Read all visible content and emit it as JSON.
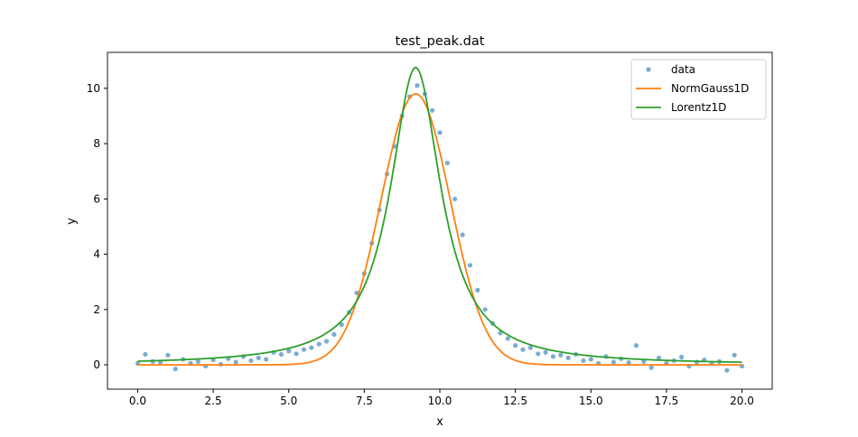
{
  "chart_data": {
    "type": "scatter",
    "title": "test_peak.dat",
    "xlabel": "x",
    "ylabel": "y",
    "xlim": [
      -1.0,
      21.0
    ],
    "ylim": [
      -0.88,
      11.3
    ],
    "xticks": [
      "0.0",
      "2.5",
      "5.0",
      "7.5",
      "10.0",
      "12.5",
      "15.0",
      "17.5",
      "20.0"
    ],
    "xtick_values": [
      0,
      2.5,
      5,
      7.5,
      10,
      12.5,
      15,
      17.5,
      20
    ],
    "yticks": [
      "0",
      "2",
      "4",
      "6",
      "8",
      "10"
    ],
    "ytick_values": [
      0,
      2,
      4,
      6,
      8,
      10
    ],
    "legend_position": "top-right",
    "series": [
      {
        "name": "data",
        "kind": "points",
        "color": "#1f77b4",
        "x": [
          0,
          0.25,
          0.5,
          0.75,
          1,
          1.25,
          1.5,
          1.75,
          2,
          2.25,
          2.5,
          2.75,
          3,
          3.25,
          3.5,
          3.75,
          4,
          4.25,
          4.5,
          4.75,
          5,
          5.25,
          5.5,
          5.75,
          6,
          6.25,
          6.5,
          6.75,
          7,
          7.25,
          7.5,
          7.75,
          8,
          8.25,
          8.5,
          8.75,
          9,
          9.25,
          9.5,
          9.75,
          10,
          10.25,
          10.5,
          10.75,
          11,
          11.25,
          11.5,
          11.75,
          12,
          12.25,
          12.5,
          12.75,
          13,
          13.25,
          13.5,
          13.75,
          14,
          14.25,
          14.5,
          14.75,
          15,
          15.25,
          15.5,
          15.75,
          16,
          16.25,
          16.5,
          16.75,
          17,
          17.25,
          17.5,
          17.75,
          18,
          18.25,
          18.5,
          18.75,
          19,
          19.25,
          19.5,
          19.75,
          20
        ],
        "y": [
          0.05,
          0.38,
          0.12,
          0.1,
          0.35,
          -0.15,
          0.2,
          0.05,
          0.12,
          -0.05,
          0.18,
          0.02,
          0.22,
          0.1,
          0.3,
          0.15,
          0.25,
          0.2,
          0.45,
          0.38,
          0.5,
          0.4,
          0.55,
          0.62,
          0.75,
          0.85,
          1.1,
          1.45,
          1.9,
          2.6,
          3.3,
          4.4,
          5.6,
          6.9,
          7.9,
          9.0,
          9.7,
          10.1,
          9.8,
          9.2,
          8.4,
          7.3,
          6.0,
          4.7,
          3.6,
          2.7,
          2.0,
          1.5,
          1.15,
          0.95,
          0.7,
          0.55,
          0.62,
          0.4,
          0.45,
          0.3,
          0.35,
          0.25,
          0.38,
          0.15,
          0.2,
          0.05,
          0.3,
          0.1,
          0.22,
          0.08,
          0.7,
          0.12,
          -0.1,
          0.25,
          0.05,
          0.15,
          0.28,
          -0.05,
          0.1,
          0.18,
          0.05,
          0.12,
          -0.2,
          0.35,
          -0.05
        ]
      },
      {
        "name": "NormGauss1D",
        "kind": "gaussian",
        "color": "#ff7f0e",
        "amplitude": 9.8,
        "center": 9.2,
        "sigma": 1.15,
        "x_range": [
          0,
          20
        ]
      },
      {
        "name": "Lorentz1D",
        "kind": "lorentzian",
        "color": "#2ca02c",
        "amplitude": 10.75,
        "center": 9.2,
        "hwhm": 1.02,
        "x_range": [
          0,
          20
        ]
      }
    ]
  }
}
